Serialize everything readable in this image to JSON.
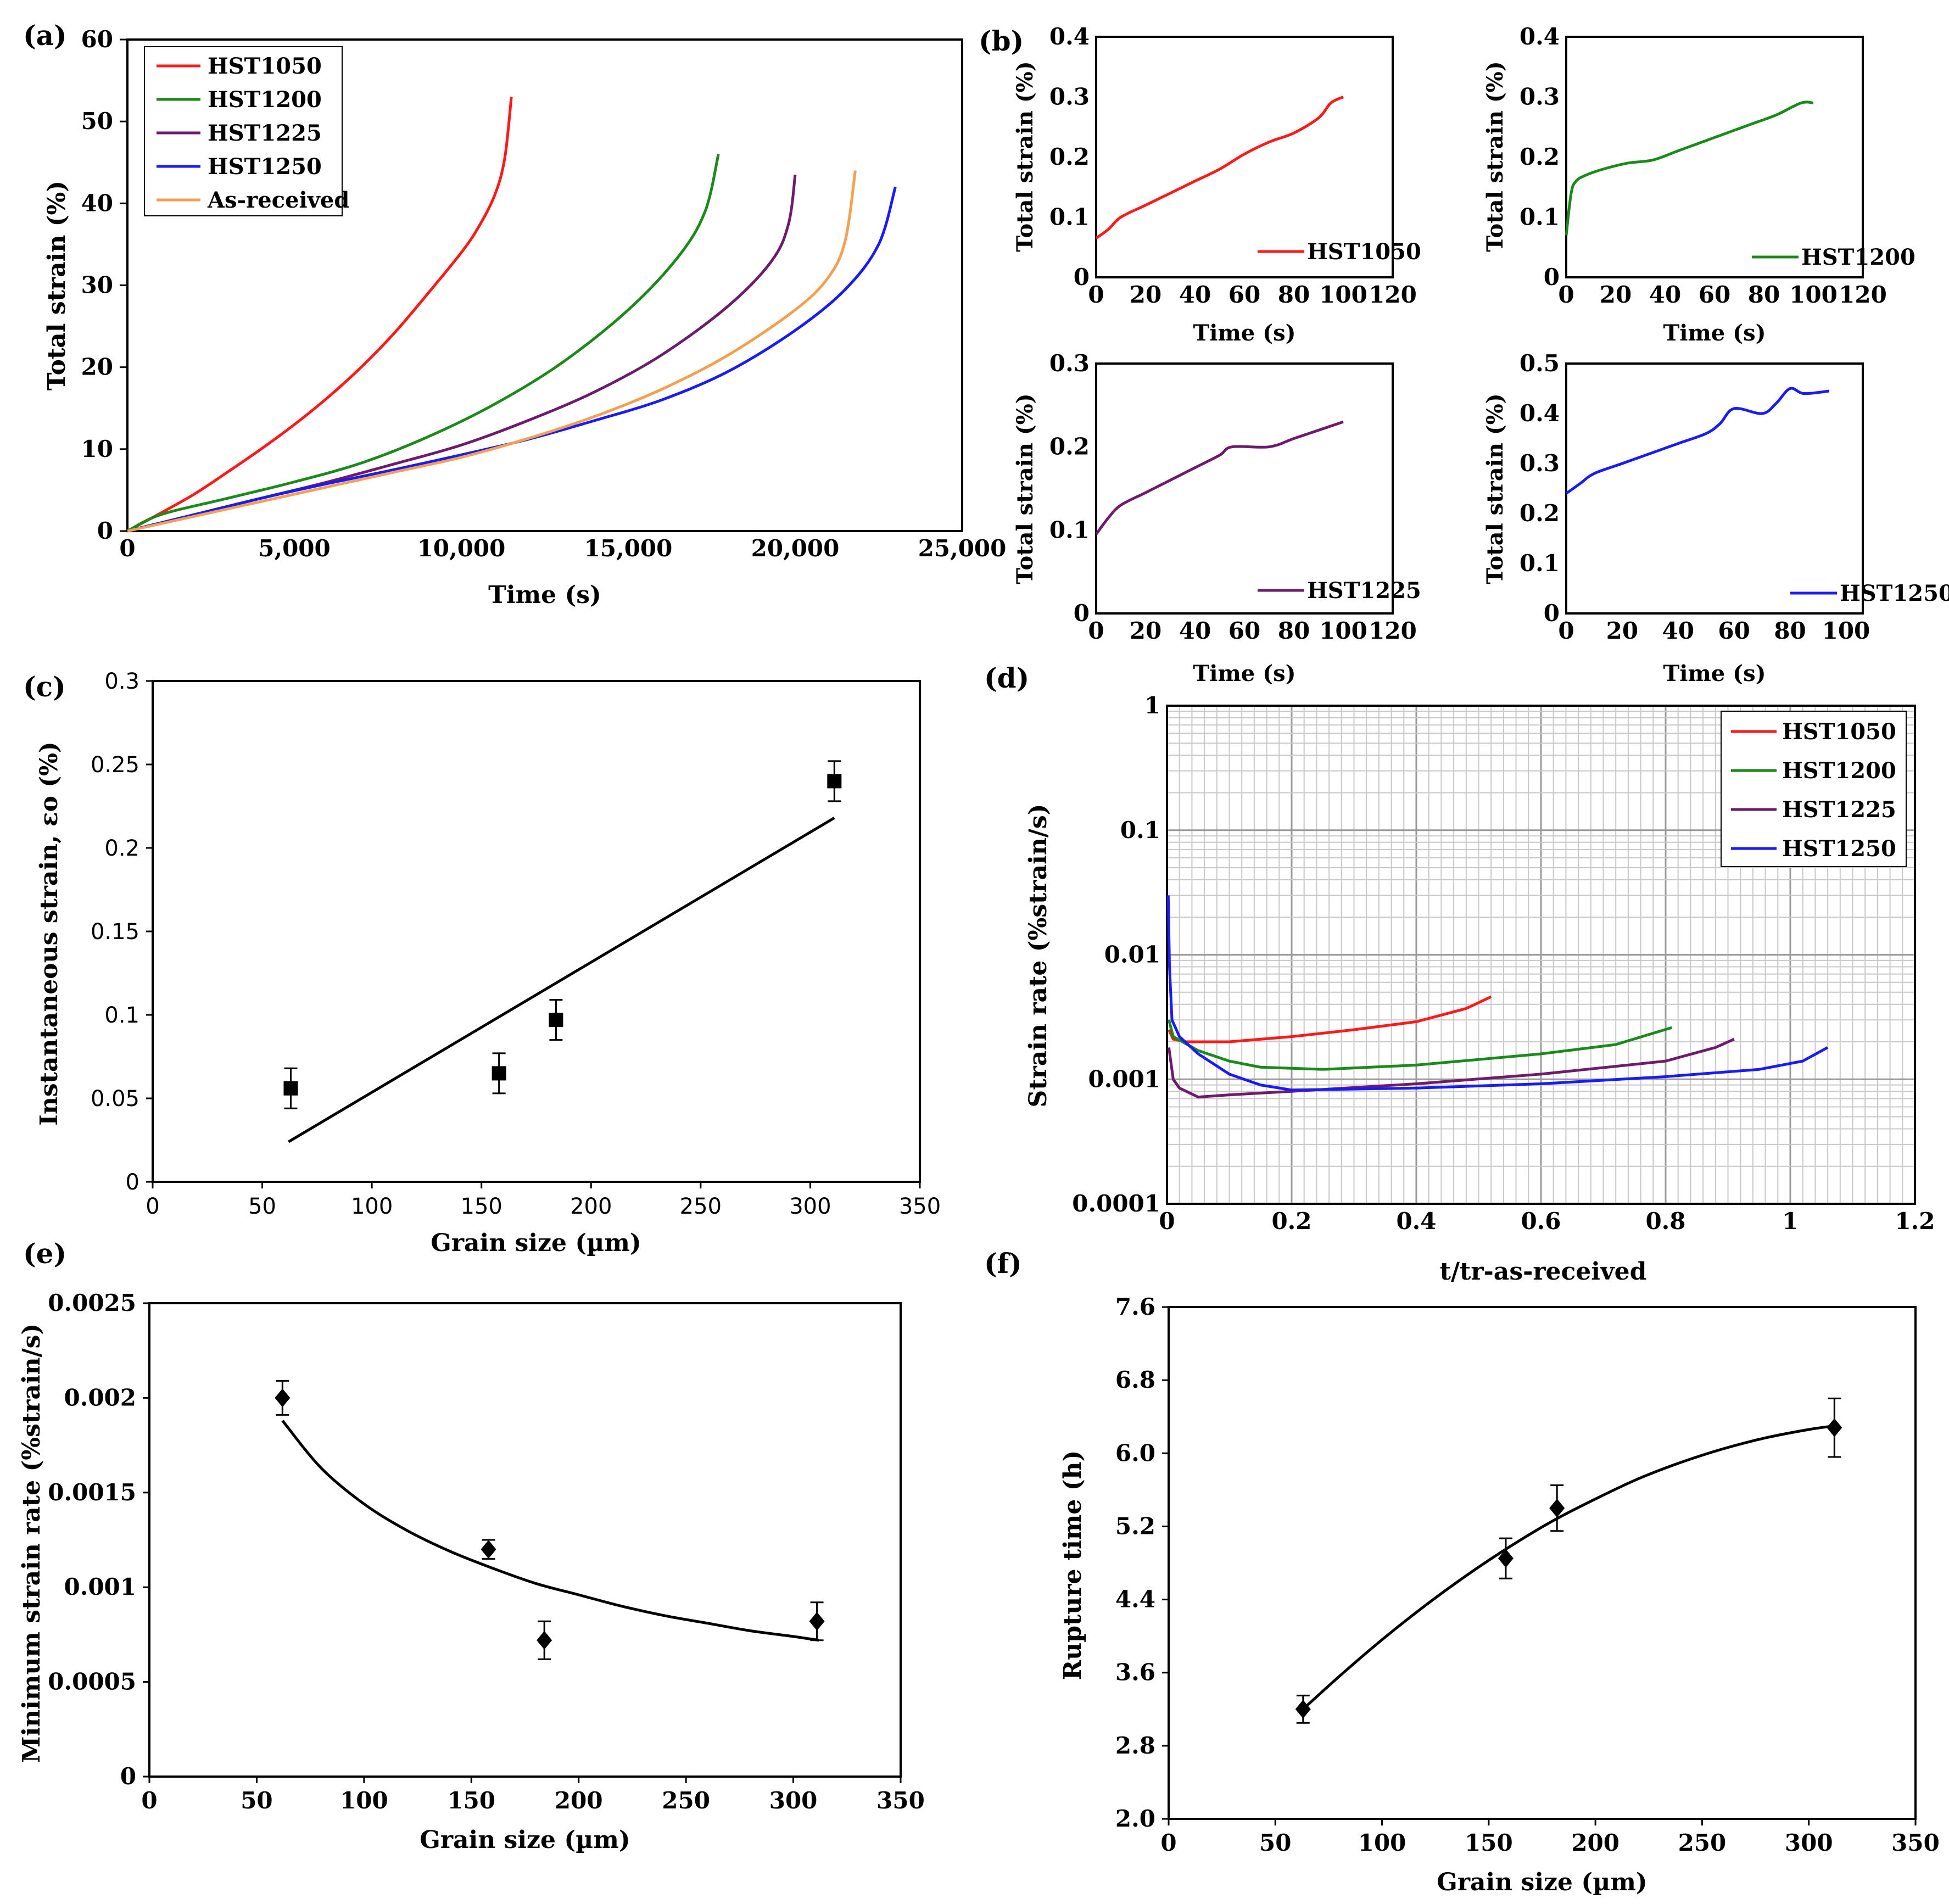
{
  "colors": {
    "HST1050": "#ff1a1a",
    "HST1200": "#1a8a1a",
    "HST1225": "#6e1a6e",
    "HST1250": "#1a1aff",
    "As-received": "#f5a050",
    "fit": "#000000"
  },
  "chart_data": [
    {
      "panel": "(a)",
      "type": "line",
      "xlabel": "Time (s)",
      "ylabel": "Total strain (%)",
      "xlim": [
        0,
        25000
      ],
      "ylim": [
        0,
        60
      ],
      "xticks": [
        0,
        5000,
        10000,
        15000,
        20000,
        25000
      ],
      "xtick_labels": [
        "0",
        "5,000",
        "10,000",
        "15,000",
        "20,000",
        "25,000"
      ],
      "yticks": [
        0,
        10,
        20,
        30,
        40,
        50,
        60
      ],
      "legend_position": "top-left",
      "series": [
        {
          "name": "HST1050",
          "color_key": "HST1050",
          "x": [
            0,
            1000,
            2000,
            3000,
            4000,
            5000,
            6000,
            7000,
            8000,
            9000,
            10000,
            10500,
            11000,
            11300,
            11500
          ],
          "y": [
            0,
            2.2,
            4.5,
            7.2,
            10.0,
            13.0,
            16.3,
            20.0,
            24.2,
            29.0,
            34.0,
            37.0,
            41.0,
            45.5,
            53.0
          ]
        },
        {
          "name": "HST1200",
          "color_key": "HST1200",
          "x": [
            0,
            1000,
            3000,
            5000,
            7000,
            9000,
            11000,
            13000,
            15000,
            16500,
            17300,
            17700
          ],
          "y": [
            0,
            2.0,
            4.0,
            6.0,
            8.3,
            11.5,
            15.5,
            20.5,
            27.0,
            33.5,
            39.0,
            46.0
          ]
        },
        {
          "name": "HST1225",
          "color_key": "HST1225",
          "x": [
            0,
            2000,
            4000,
            6000,
            8000,
            10000,
            12000,
            14000,
            16000,
            18000,
            19300,
            19800,
            20000
          ],
          "y": [
            0,
            2.0,
            4.0,
            6.0,
            8.2,
            10.5,
            13.5,
            17.0,
            21.5,
            27.5,
            33.0,
            37.5,
            43.5
          ]
        },
        {
          "name": "HST1250",
          "color_key": "HST1250",
          "x": [
            0,
            2000,
            4000,
            6000,
            8000,
            10000,
            12000,
            14000,
            16000,
            18000,
            20000,
            21500,
            22500,
            23000
          ],
          "y": [
            0,
            2.0,
            4.0,
            5.8,
            7.5,
            9.3,
            11.2,
            13.5,
            16.0,
            19.5,
            24.5,
            29.5,
            35.0,
            42.0
          ]
        },
        {
          "name": "As-received",
          "color_key": "As-received",
          "x": [
            0,
            2000,
            4000,
            6000,
            8000,
            10000,
            12000,
            14000,
            16000,
            18000,
            20000,
            21000,
            21500,
            21800
          ],
          "y": [
            0,
            1.8,
            3.6,
            5.4,
            7.2,
            9.0,
            11.3,
            14.0,
            17.3,
            21.5,
            27.0,
            31.0,
            35.5,
            44.0
          ]
        }
      ]
    },
    {
      "panel": "(b)",
      "type": "line",
      "subplots": [
        {
          "xlabel": "Time (s)",
          "ylabel": "Total strain (%)",
          "xlim": [
            0,
            120
          ],
          "ylim": [
            0,
            0.4
          ],
          "xticks": [
            0,
            20,
            40,
            60,
            80,
            100,
            120
          ],
          "yticks": [
            0,
            0.1,
            0.2,
            0.3,
            0.4
          ],
          "legend_position": "bottom-right",
          "series": [
            {
              "name": "HST1050",
              "color_key": "HST1050",
              "x": [
                0,
                5,
                10,
                20,
                30,
                40,
                50,
                60,
                70,
                80,
                90,
                95,
                100
              ],
              "y": [
                0.065,
                0.08,
                0.1,
                0.12,
                0.14,
                0.16,
                0.18,
                0.205,
                0.225,
                0.24,
                0.265,
                0.29,
                0.3
              ]
            }
          ]
        },
        {
          "xlabel": "Time (s)",
          "ylabel": "Total strain (%)",
          "xlim": [
            0,
            120
          ],
          "ylim": [
            0,
            0.4
          ],
          "xticks": [
            0,
            20,
            40,
            60,
            80,
            100,
            120
          ],
          "yticks": [
            0,
            0.1,
            0.2,
            0.3,
            0.4
          ],
          "legend_position": "bottom-right",
          "series": [
            {
              "name": "HST1200",
              "color_key": "HST1200",
              "x": [
                0,
                2,
                4,
                8,
                15,
                25,
                35,
                45,
                55,
                65,
                75,
                85,
                95,
                100
              ],
              "y": [
                0.07,
                0.14,
                0.16,
                0.17,
                0.18,
                0.19,
                0.195,
                0.21,
                0.225,
                0.24,
                0.255,
                0.27,
                0.29,
                0.29
              ]
            }
          ]
        },
        {
          "xlabel": "Time (s)",
          "ylabel": "Total strain (%)",
          "xlim": [
            0,
            120
          ],
          "ylim": [
            0,
            0.3
          ],
          "xticks": [
            0,
            20,
            40,
            60,
            80,
            100,
            120
          ],
          "yticks": [
            0,
            0.1,
            0.2,
            0.3
          ],
          "legend_position": "bottom-right",
          "series": [
            {
              "name": "HST1225",
              "color_key": "HST1225",
              "x": [
                0,
                5,
                10,
                20,
                30,
                40,
                50,
                55,
                70,
                80,
                90,
                100
              ],
              "y": [
                0.095,
                0.115,
                0.13,
                0.145,
                0.16,
                0.175,
                0.19,
                0.2,
                0.2,
                0.21,
                0.22,
                0.23
              ]
            }
          ]
        },
        {
          "xlabel": "Time (s)",
          "ylabel": "Total strain (%)",
          "xlim": [
            0,
            100
          ],
          "ylim": [
            0,
            0.5
          ],
          "xticks": [
            0,
            20,
            40,
            60,
            80,
            100
          ],
          "yticks": [
            0,
            0.1,
            0.2,
            0.3,
            0.4,
            0.5
          ],
          "legend_position": "bottom-right",
          "series": [
            {
              "name": "HST1250",
              "color_key": "HST1250",
              "x": [
                0,
                5,
                10,
                20,
                30,
                40,
                50,
                55,
                60,
                70,
                75,
                80,
                85,
                94
              ],
              "y": [
                0.24,
                0.26,
                0.28,
                0.3,
                0.32,
                0.34,
                0.36,
                0.38,
                0.41,
                0.4,
                0.42,
                0.45,
                0.44,
                0.445
              ]
            }
          ]
        }
      ]
    },
    {
      "panel": "(c)",
      "type": "scatter",
      "xlabel": "Grain size (µm)",
      "ylabel": "Instantaneous strain, εo  (%)",
      "xlim": [
        0,
        350
      ],
      "ylim": [
        0,
        0.3
      ],
      "xticks": [
        0,
        50,
        100,
        150,
        200,
        250,
        300,
        350
      ],
      "yticks": [
        0,
        0.05,
        0.1,
        0.15,
        0.2,
        0.25,
        0.3
      ],
      "points": {
        "x": [
          63,
          158,
          184,
          311
        ],
        "y": [
          0.056,
          0.065,
          0.097,
          0.24
        ],
        "err": [
          0.012,
          0.012,
          0.012,
          0.012
        ]
      },
      "fit": {
        "type": "linear",
        "x": [
          62,
          311
        ],
        "y": [
          0.024,
          0.218
        ]
      }
    },
    {
      "panel": "(d)",
      "type": "line",
      "yscale": "log",
      "xlabel": "t/tr-as-received",
      "ylabel": "Strain rate (%strain/s)",
      "xlim": [
        0,
        1.2
      ],
      "ylim": [
        0.0001,
        1
      ],
      "xticks": [
        0,
        0.2,
        0.4,
        0.6,
        0.8,
        1,
        1.2
      ],
      "yticks": [
        0.0001,
        0.001,
        0.01,
        0.1,
        1
      ],
      "legend_position": "top-right",
      "series": [
        {
          "name": "HST1050",
          "color_key": "HST1050",
          "x": [
            0.003,
            0.01,
            0.03,
            0.06,
            0.1,
            0.2,
            0.3,
            0.4,
            0.48,
            0.52
          ],
          "y": [
            0.0025,
            0.0021,
            0.002,
            0.002,
            0.002,
            0.0022,
            0.0025,
            0.0029,
            0.0037,
            0.0046
          ]
        },
        {
          "name": "HST1200",
          "color_key": "HST1200",
          "x": [
            0.003,
            0.01,
            0.05,
            0.1,
            0.15,
            0.25,
            0.4,
            0.6,
            0.72,
            0.81
          ],
          "y": [
            0.003,
            0.0022,
            0.0017,
            0.0014,
            0.00125,
            0.0012,
            0.0013,
            0.0016,
            0.0019,
            0.0026
          ]
        },
        {
          "name": "HST1225",
          "color_key": "HST1225",
          "x": [
            0.003,
            0.01,
            0.02,
            0.05,
            0.1,
            0.2,
            0.4,
            0.6,
            0.8,
            0.88,
            0.91
          ],
          "y": [
            0.0018,
            0.001,
            0.00085,
            0.00072,
            0.00075,
            0.0008,
            0.00092,
            0.0011,
            0.0014,
            0.0018,
            0.0021
          ]
        },
        {
          "name": "HST1250",
          "color_key": "HST1250",
          "x": [
            0.002,
            0.004,
            0.008,
            0.02,
            0.05,
            0.1,
            0.15,
            0.2,
            0.4,
            0.6,
            0.8,
            0.95,
            1.02,
            1.06
          ],
          "y": [
            0.03,
            0.008,
            0.003,
            0.0022,
            0.0016,
            0.0011,
            0.0009,
            0.00082,
            0.00085,
            0.00092,
            0.00105,
            0.0012,
            0.0014,
            0.0018
          ]
        }
      ]
    },
    {
      "panel": "(e)",
      "type": "scatter",
      "xlabel": "Grain size (µm)",
      "ylabel": "Minimum strain rate (%strain/s)",
      "xlim": [
        0,
        350
      ],
      "ylim": [
        0,
        0.0025
      ],
      "xticks": [
        0,
        50,
        100,
        150,
        200,
        250,
        300,
        350
      ],
      "yticks": [
        0,
        0.0005,
        0.001,
        0.0015,
        0.002,
        0.0025
      ],
      "points": {
        "x": [
          62,
          158,
          184,
          311
        ],
        "y": [
          0.002,
          0.0012,
          0.00072,
          0.00082
        ],
        "err": [
          9e-05,
          5e-05,
          0.0001,
          0.0001
        ]
      },
      "fit": {
        "type": "power",
        "x": [
          62,
          80,
          100,
          120,
          140,
          160,
          180,
          200,
          220,
          240,
          260,
          280,
          300,
          312
        ],
        "y": [
          0.00188,
          0.00163,
          0.00144,
          0.0013,
          0.00119,
          0.0011,
          0.00102,
          0.00096,
          0.0009,
          0.00085,
          0.00081,
          0.00077,
          0.00074,
          0.00072
        ]
      }
    },
    {
      "panel": "(f)",
      "type": "scatter",
      "xlabel": "Grain size (µm)",
      "ylabel": "Rupture time (h)",
      "xlim": [
        0,
        350
      ],
      "ylim": [
        2.0,
        7.6
      ],
      "xticks": [
        0,
        50,
        100,
        150,
        200,
        250,
        300,
        350
      ],
      "yticks": [
        2.0,
        2.8,
        3.6,
        4.4,
        5.2,
        6.0,
        6.8,
        7.6
      ],
      "ytick_labels": [
        "2.0",
        "2.8",
        "3.6",
        "4.4",
        "5.2",
        "6.0",
        "6.8",
        "7.6"
      ],
      "points": {
        "x": [
          63,
          158,
          182,
          312
        ],
        "y": [
          3.2,
          4.85,
          5.4,
          6.28
        ],
        "err": [
          0.15,
          0.22,
          0.25,
          0.32
        ]
      },
      "fit": {
        "type": "polynomial",
        "x": [
          63,
          80,
          100,
          120,
          140,
          160,
          180,
          200,
          220,
          240,
          260,
          280,
          300,
          312
        ],
        "y": [
          3.2,
          3.56,
          3.96,
          4.33,
          4.67,
          4.98,
          5.26,
          5.5,
          5.72,
          5.9,
          6.05,
          6.17,
          6.26,
          6.3
        ]
      }
    }
  ]
}
